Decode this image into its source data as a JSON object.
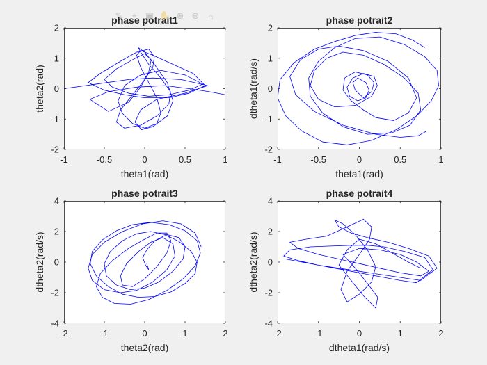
{
  "colors": {
    "figure_bg": "#f0f0f0",
    "axes_bg": "#ffffff",
    "axis": "#262626",
    "line": "#0000ff"
  },
  "toolbar": {
    "icons": [
      "brush-icon",
      "data-tip-icon",
      "save-icon",
      "pan-icon",
      "zoom-in-icon",
      "zoom-out-icon",
      "home-icon"
    ]
  },
  "chart_data": [
    {
      "type": "line",
      "title": "phase potrait1",
      "xlabel": "theta1(rad)",
      "ylabel": "theta2(rad)",
      "xlim": [
        -1,
        1
      ],
      "ylim": [
        -2,
        2
      ],
      "xticks": [
        -1,
        -0.5,
        0,
        0.5,
        1
      ],
      "yticks": [
        -2,
        -1,
        0,
        1,
        2
      ],
      "xtick_labels": [
        "-1",
        "-0.5",
        "0",
        "0.5",
        "1"
      ],
      "ytick_labels": [
        "-2",
        "-1",
        "0",
        "1",
        "2"
      ],
      "grid": false,
      "series": [
        {
          "x": [
            -1.0,
            -0.6,
            -0.2,
            0.1,
            0.45,
            0.78,
            0.5,
            0.15,
            -0.05,
            -0.12,
            -0.04,
            0.1,
            0.28,
            0.35,
            0.28,
            0.12,
            0.0,
            -0.08,
            -0.05,
            0.05,
            0.2,
            0.32,
            0.3,
            0.15,
            -0.05,
            -0.25,
            -0.35,
            -0.3,
            -0.15,
            0.0,
            0.1,
            0.12,
            0.05,
            -0.1,
            -0.3,
            -0.55,
            -0.7,
            -0.5,
            -0.25,
            0.0,
            0.3,
            0.55,
            0.75,
            0.6,
            0.35,
            0.1,
            -0.05,
            -0.1,
            -0.05,
            0.05,
            0.15,
            0.2,
            0.15,
            0.0,
            -0.15,
            -0.28,
            -0.33,
            -0.25,
            -0.05,
            0.2,
            0.5,
            0.72,
            0.55,
            0.3,
            0.05,
            -0.2,
            -0.4,
            -0.5,
            -0.35,
            -0.15,
            0.0,
            0.08,
            0.05,
            -0.05,
            -0.2,
            -0.45,
            -0.68,
            -0.45,
            -0.1,
            0.25,
            0.55,
            0.8,
            1.0
          ],
          "y": [
            0.0,
            0.15,
            0.3,
            0.35,
            0.3,
            0.1,
            -0.15,
            -0.35,
            -0.7,
            -1.1,
            -1.35,
            -1.25,
            -0.9,
            -0.4,
            0.2,
            0.8,
            1.2,
            1.35,
            1.2,
            0.8,
            0.35,
            -0.1,
            -0.5,
            -0.9,
            -1.2,
            -1.3,
            -1.1,
            -0.7,
            -0.2,
            0.3,
            0.7,
            1.05,
            1.3,
            1.2,
            0.9,
            0.5,
            0.2,
            -0.05,
            -0.2,
            -0.3,
            -0.3,
            -0.15,
            0.1,
            0.5,
            0.8,
            1.1,
            1.25,
            1.1,
            0.7,
            0.2,
            -0.3,
            -0.8,
            -1.15,
            -1.3,
            -1.15,
            -0.8,
            -0.4,
            0.1,
            0.45,
            0.6,
            0.45,
            0.15,
            -0.05,
            -0.2,
            -0.25,
            -0.15,
            0.05,
            0.3,
            0.65,
            0.95,
            1.15,
            0.95,
            0.55,
            0.05,
            -0.45,
            -0.75,
            -0.35,
            -0.1,
            0.05,
            0.1,
            0.0,
            -0.1,
            -0.2
          ]
        }
      ]
    },
    {
      "type": "line",
      "title": "phase potrait2",
      "xlabel": "theta1(rad)",
      "ylabel": "dtheta1(rad/s)",
      "xlim": [
        -1,
        1
      ],
      "ylim": [
        -2,
        2
      ],
      "xticks": [
        -1,
        -0.5,
        0,
        0.5,
        1
      ],
      "yticks": [
        -2,
        -1,
        0,
        1,
        2
      ],
      "xtick_labels": [
        "-1",
        "-0.5",
        "0",
        "0.5",
        "1"
      ],
      "ytick_labels": [
        "-2",
        "-1",
        "0",
        "1",
        "2"
      ],
      "grid": false,
      "series": [
        {
          "x": [
            0.8,
            0.65,
            0.45,
            0.2,
            -0.05,
            -0.3,
            -0.55,
            -0.8,
            -0.97,
            -1.0,
            -0.9,
            -0.7,
            -0.45,
            -0.15,
            0.15,
            0.45,
            0.7,
            0.88,
            0.97,
            0.95,
            0.8,
            0.55,
            0.25,
            -0.05,
            -0.3,
            -0.5,
            -0.62,
            -0.6,
            -0.45,
            -0.2,
            0.1,
            0.4,
            0.62,
            0.75,
            0.72,
            0.55,
            0.3,
            0.05,
            -0.2,
            -0.4,
            -0.55,
            -0.6,
            -0.5,
            -0.3,
            -0.05,
            0.15,
            0.22,
            0.18,
            0.05,
            -0.08,
            -0.15,
            -0.12,
            -0.02,
            0.08,
            0.12,
            0.08,
            -0.02,
            -0.08,
            -0.05,
            0.05,
            0.15,
            0.18,
            0.1,
            -0.05,
            -0.18,
            -0.2,
            -0.1,
            0.05,
            0.2,
            0.42,
            0.6,
            0.7,
            0.6,
            0.35,
            0.05,
            -0.25,
            -0.5,
            -0.72,
            -0.85,
            -0.78,
            -0.55,
            -0.2,
            0.2,
            0.5,
            0.72,
            0.82
          ],
          "y": [
            1.35,
            1.6,
            1.8,
            1.85,
            1.75,
            1.55,
            1.3,
            0.85,
            0.3,
            -0.3,
            -0.9,
            -1.4,
            -1.75,
            -1.85,
            -1.7,
            -1.35,
            -0.9,
            -0.4,
            0.1,
            0.6,
            1.05,
            1.45,
            1.7,
            1.65,
            1.35,
            0.9,
            0.35,
            -0.25,
            -0.8,
            -1.25,
            -1.5,
            -1.45,
            -1.2,
            -0.7,
            -0.15,
            0.35,
            0.8,
            1.1,
            1.2,
            1.0,
            0.6,
            0.1,
            -0.35,
            -0.6,
            -0.55,
            -0.25,
            0.1,
            0.4,
            0.5,
            0.35,
            0.05,
            -0.25,
            -0.4,
            -0.3,
            -0.05,
            0.2,
            0.35,
            0.2,
            -0.05,
            -0.3,
            -0.1,
            0.2,
            0.45,
            0.55,
            0.35,
            -0.05,
            -0.4,
            -0.7,
            -0.95,
            -1.05,
            -0.8,
            -0.3,
            0.35,
            0.9,
            1.25,
            1.4,
            1.3,
            0.95,
            0.4,
            -0.2,
            -0.75,
            -1.2,
            -1.5,
            -1.6,
            -1.55,
            -1.4
          ]
        }
      ]
    },
    {
      "type": "line",
      "title": "phase potrait3",
      "xlabel": "theta2(rad)",
      "ylabel": "dtheta2(rad/s)",
      "xlim": [
        -2,
        2
      ],
      "ylim": [
        -4,
        4
      ],
      "xticks": [
        -2,
        -1,
        0,
        1,
        2
      ],
      "yticks": [
        -4,
        -2,
        0,
        2,
        4
      ],
      "xtick_labels": [
        "-2",
        "-1",
        "0",
        "1",
        "2"
      ],
      "ytick_labels": [
        "-4",
        "-2",
        "0",
        "2",
        "4"
      ],
      "grid": false,
      "series": [
        {
          "x": [
            0.05,
            0.1,
            0.02,
            -0.05,
            0.05,
            0.25,
            0.55,
            0.85,
            1.0,
            0.95,
            0.7,
            0.35,
            0.0,
            -0.35,
            -0.7,
            -0.95,
            -1.0,
            -0.85,
            -0.55,
            -0.2,
            0.15,
            0.5,
            0.85,
            1.15,
            1.3,
            1.25,
            1.0,
            0.65,
            0.25,
            -0.15,
            -0.55,
            -0.9,
            -1.2,
            -1.35,
            -1.3,
            -1.05,
            -0.7,
            -0.3,
            0.15,
            0.6,
            1.0,
            1.3,
            1.38,
            1.25,
            0.95,
            0.55,
            0.1,
            -0.35,
            -0.75,
            -1.05,
            -1.2,
            -1.1,
            -0.8,
            -0.4,
            0.0,
            0.3,
            0.55,
            0.65,
            0.55,
            0.3,
            0.0,
            -0.3,
            -0.55,
            -0.6,
            -0.45,
            -0.15,
            0.15,
            0.45,
            0.7,
            0.75,
            0.55,
            0.2,
            -0.2,
            -0.6,
            -1.0,
            -1.3,
            -1.4,
            -1.3,
            -1.0,
            -0.55,
            -0.05,
            0.45,
            0.9,
            1.25,
            1.4
          ],
          "y": [
            -0.1,
            -0.5,
            -0.2,
            0.3,
            0.8,
            1.4,
            1.8,
            1.6,
            1.0,
            0.2,
            -0.6,
            -1.3,
            -1.7,
            -1.8,
            -1.5,
            -0.9,
            -0.1,
            0.7,
            1.4,
            1.85,
            2.0,
            1.8,
            1.35,
            0.7,
            0.0,
            -0.75,
            -1.4,
            -1.95,
            -2.25,
            -2.3,
            -2.1,
            -1.6,
            -0.9,
            -0.1,
            0.7,
            1.45,
            2.05,
            2.45,
            2.6,
            2.45,
            2.05,
            1.4,
            0.6,
            -0.25,
            -1.1,
            -1.85,
            -2.45,
            -2.75,
            -2.7,
            -2.3,
            -1.6,
            -0.75,
            0.1,
            0.9,
            1.5,
            1.9,
            1.9,
            1.4,
            0.6,
            -0.3,
            -1.1,
            -1.6,
            -1.5,
            -0.9,
            -0.1,
            0.7,
            1.3,
            1.6,
            1.2,
            0.4,
            -0.5,
            -1.3,
            -1.85,
            -2.0,
            -1.8,
            -1.2,
            -0.4,
            0.5,
            1.3,
            2.0,
            2.5,
            2.7,
            2.5,
            1.9,
            1.0
          ]
        }
      ]
    },
    {
      "type": "line",
      "title": "phase potrait4",
      "xlabel": "dtheta1(rad/s)",
      "ylabel": "dtheta2(rad/s)",
      "xlim": [
        -2,
        2
      ],
      "ylim": [
        -4,
        4
      ],
      "xticks": [
        -2,
        -1,
        0,
        1,
        2
      ],
      "yticks": [
        -4,
        -2,
        0,
        2,
        4
      ],
      "xtick_labels": [
        "-2",
        "-1",
        "0",
        "1",
        "2"
      ],
      "ytick_labels": [
        "-4",
        "-2",
        "0",
        "2",
        "4"
      ],
      "grid": false,
      "series": [
        {
          "x": [
            -1.8,
            -1.4,
            -1.0,
            -0.6,
            -0.2,
            0.2,
            0.6,
            1.0,
            1.4,
            1.8,
            1.6,
            1.1,
            0.6,
            0.2,
            -0.2,
            -0.7,
            -1.2,
            -1.7,
            -1.85,
            -1.5,
            -1.0,
            -0.5,
            0.0,
            0.5,
            1.0,
            1.5,
            1.9,
            1.7,
            1.2,
            0.7,
            0.2,
            -0.2,
            -0.5,
            -0.6,
            -0.4,
            -0.1,
            0.2,
            0.4,
            0.3,
            0.0,
            -0.3,
            -0.45,
            -0.3,
            0.0,
            0.25,
            0.3,
            0.1,
            -0.3,
            -0.8,
            -1.3,
            -1.7,
            -1.5,
            -1.0,
            -0.5,
            0.0,
            0.5,
            1.0,
            1.5,
            1.7,
            1.4,
            1.0,
            0.5,
            0.0,
            -0.4,
            -0.1,
            0.2,
            0.45,
            0.4,
            0.1,
            -0.2,
            -0.5,
            -0.3,
            0.0,
            0.4,
            0.8,
            1.2,
            1.5
          ],
          "y": [
            0.2,
            0.0,
            -0.2,
            -0.4,
            -0.6,
            -0.8,
            -1.0,
            -1.2,
            -1.35,
            -0.5,
            0.3,
            0.7,
            1.0,
            1.1,
            1.1,
            1.05,
            1.0,
            0.8,
            0.4,
            0.1,
            -0.2,
            -0.4,
            -0.6,
            -0.8,
            -1.0,
            -1.2,
            -0.4,
            0.4,
            0.9,
            1.3,
            1.6,
            1.9,
            2.3,
            2.75,
            2.5,
            1.8,
            0.8,
            -0.3,
            -1.3,
            -2.1,
            -2.6,
            -1.8,
            -0.6,
            0.5,
            1.5,
            2.3,
            2.8,
            2.3,
            1.7,
            1.5,
            1.3,
            0.9,
            0.5,
            0.2,
            -0.1,
            -0.4,
            -0.7,
            -0.9,
            -0.6,
            0.0,
            0.5,
            0.8,
            0.9,
            0.5,
            -0.4,
            -1.4,
            -2.3,
            -3.0,
            -2.2,
            -1.2,
            -0.2,
            0.8,
            1.5,
            1.2,
            0.6,
            0.0,
            -0.4
          ]
        }
      ]
    }
  ]
}
